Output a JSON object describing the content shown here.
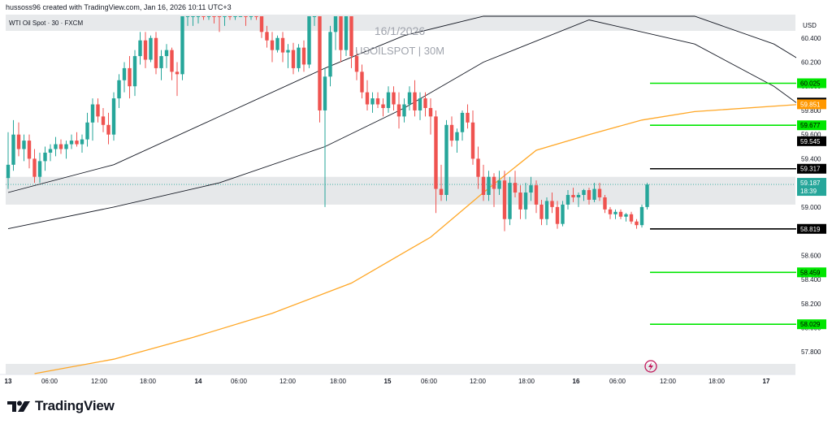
{
  "header": {
    "created_by": "hussoss96 created with TradingView.com, Jan 16, 2026 10:11 UTC+3"
  },
  "symbol_label": "WTI Oil Spot · 30 · FXCM",
  "watermark": {
    "date": "16/1/2026",
    "ticker": "USOILSPOT | 30M"
  },
  "currency": "USD",
  "brand": "TradingView",
  "icons": {
    "flash": "lightning-icon",
    "logo": "tradingview-logo-icon"
  },
  "colors": {
    "bull": "#26a69a",
    "bear": "#ef5350",
    "ema_long": "#ffa726",
    "channel": "#131722",
    "green_level": "#00e600",
    "black_level": "#000000",
    "grid_band": "#e3e5e8",
    "last_price": "#26a69a"
  },
  "chart_data": {
    "type": "candlestick",
    "title": "WTI Oil Spot · 30 · FXCM",
    "ylim": [
      57.62,
      60.58
    ],
    "y_ticks": [
      "60.400",
      "60.200",
      "60.000",
      "59.800",
      "59.600",
      "59.400",
      "59.200",
      "59.000",
      "58.800",
      "58.600",
      "58.400",
      "58.200",
      "58.000",
      "57.800"
    ],
    "x_ticks": [
      "13",
      "06:00",
      "12:00",
      "18:00",
      "14",
      "06:00",
      "12:00",
      "18:00",
      "15",
      "06:00",
      "12:00",
      "18:00",
      "16",
      "06:00",
      "12:00",
      "18:00",
      "17"
    ],
    "candles": [
      {
        "i": 0,
        "o": 59.24,
        "h": 59.62,
        "l": 59.15,
        "c": 59.35
      },
      {
        "i": 1,
        "o": 59.35,
        "h": 59.72,
        "l": 59.3,
        "c": 59.6
      },
      {
        "i": 2,
        "o": 59.6,
        "h": 59.7,
        "l": 59.42,
        "c": 59.48
      },
      {
        "i": 3,
        "o": 59.48,
        "h": 59.6,
        "l": 59.38,
        "c": 59.55
      },
      {
        "i": 4,
        "o": 59.55,
        "h": 59.6,
        "l": 59.32,
        "c": 59.4
      },
      {
        "i": 5,
        "o": 59.4,
        "h": 59.48,
        "l": 59.2,
        "c": 59.25
      },
      {
        "i": 6,
        "o": 59.25,
        "h": 59.45,
        "l": 59.2,
        "c": 59.38
      },
      {
        "i": 7,
        "o": 59.38,
        "h": 59.5,
        "l": 59.3,
        "c": 59.45
      },
      {
        "i": 8,
        "o": 59.45,
        "h": 59.52,
        "l": 59.38,
        "c": 59.48
      },
      {
        "i": 9,
        "o": 59.48,
        "h": 59.58,
        "l": 59.42,
        "c": 59.52
      },
      {
        "i": 10,
        "o": 59.52,
        "h": 59.56,
        "l": 59.44,
        "c": 59.48
      },
      {
        "i": 11,
        "o": 59.48,
        "h": 59.55,
        "l": 59.4,
        "c": 59.52
      },
      {
        "i": 12,
        "o": 59.52,
        "h": 59.6,
        "l": 59.48,
        "c": 59.55
      },
      {
        "i": 13,
        "o": 59.55,
        "h": 59.62,
        "l": 59.5,
        "c": 59.52
      },
      {
        "i": 14,
        "o": 59.52,
        "h": 59.6,
        "l": 59.45,
        "c": 59.56
      },
      {
        "i": 15,
        "o": 59.56,
        "h": 59.78,
        "l": 59.5,
        "c": 59.7
      },
      {
        "i": 16,
        "o": 59.7,
        "h": 59.9,
        "l": 59.55,
        "c": 59.85
      },
      {
        "i": 17,
        "o": 59.85,
        "h": 59.9,
        "l": 59.7,
        "c": 59.75
      },
      {
        "i": 18,
        "o": 59.75,
        "h": 59.82,
        "l": 59.62,
        "c": 59.68
      },
      {
        "i": 19,
        "o": 59.68,
        "h": 59.78,
        "l": 59.52,
        "c": 59.6
      },
      {
        "i": 20,
        "o": 59.6,
        "h": 59.95,
        "l": 59.55,
        "c": 59.9
      },
      {
        "i": 21,
        "o": 59.9,
        "h": 60.1,
        "l": 59.82,
        "c": 60.05
      },
      {
        "i": 22,
        "o": 60.05,
        "h": 60.2,
        "l": 59.95,
        "c": 60.15
      },
      {
        "i": 23,
        "o": 60.15,
        "h": 60.25,
        "l": 59.9,
        "c": 60.0
      },
      {
        "i": 24,
        "o": 60.0,
        "h": 60.3,
        "l": 59.92,
        "c": 60.25
      },
      {
        "i": 25,
        "o": 60.25,
        "h": 60.45,
        "l": 60.18,
        "c": 60.38
      },
      {
        "i": 26,
        "o": 60.38,
        "h": 60.45,
        "l": 60.15,
        "c": 60.22
      },
      {
        "i": 27,
        "o": 60.22,
        "h": 60.42,
        "l": 60.2,
        "c": 60.4
      },
      {
        "i": 28,
        "o": 60.4,
        "h": 60.45,
        "l": 60.1,
        "c": 60.15
      },
      {
        "i": 29,
        "o": 60.15,
        "h": 60.3,
        "l": 60.05,
        "c": 60.25
      },
      {
        "i": 30,
        "o": 60.25,
        "h": 60.35,
        "l": 60.15,
        "c": 60.3
      },
      {
        "i": 31,
        "o": 60.3,
        "h": 60.32,
        "l": 60.05,
        "c": 60.12
      },
      {
        "i": 32,
        "o": 60.12,
        "h": 60.2,
        "l": 59.92,
        "c": 60.1
      },
      {
        "i": 33,
        "o": 60.1,
        "h": 60.7,
        "l": 60.05,
        "c": 60.6
      },
      {
        "i": 34,
        "o": 60.6,
        "h": 60.7,
        "l": 60.5,
        "c": 60.6
      },
      {
        "i": 35,
        "o": 60.6,
        "h": 60.7,
        "l": 60.5,
        "c": 60.6
      },
      {
        "i": 36,
        "o": 60.6,
        "h": 60.7,
        "l": 60.52,
        "c": 60.62
      },
      {
        "i": 37,
        "o": 60.62,
        "h": 60.7,
        "l": 60.55,
        "c": 60.6
      },
      {
        "i": 38,
        "o": 60.6,
        "h": 60.7,
        "l": 60.55,
        "c": 60.62
      },
      {
        "i": 39,
        "o": 60.62,
        "h": 60.7,
        "l": 60.52,
        "c": 60.6
      },
      {
        "i": 40,
        "o": 60.6,
        "h": 60.7,
        "l": 60.45,
        "c": 60.58
      },
      {
        "i": 41,
        "o": 60.58,
        "h": 60.7,
        "l": 60.5,
        "c": 60.62
      },
      {
        "i": 42,
        "o": 60.62,
        "h": 60.7,
        "l": 60.55,
        "c": 60.6
      },
      {
        "i": 43,
        "o": 60.6,
        "h": 60.7,
        "l": 60.55,
        "c": 60.65
      },
      {
        "i": 44,
        "o": 60.65,
        "h": 60.7,
        "l": 60.6,
        "c": 60.68
      },
      {
        "i": 45,
        "o": 60.68,
        "h": 60.7,
        "l": 60.5,
        "c": 60.6
      },
      {
        "i": 46,
        "o": 60.6,
        "h": 60.68,
        "l": 60.55,
        "c": 60.62
      },
      {
        "i": 47,
        "o": 60.62,
        "h": 60.7,
        "l": 60.55,
        "c": 60.6
      },
      {
        "i": 48,
        "o": 60.6,
        "h": 60.68,
        "l": 60.4,
        "c": 60.45
      },
      {
        "i": 49,
        "o": 60.45,
        "h": 60.5,
        "l": 60.32,
        "c": 60.38
      },
      {
        "i": 50,
        "o": 60.38,
        "h": 60.45,
        "l": 60.2,
        "c": 60.3
      },
      {
        "i": 51,
        "o": 60.3,
        "h": 60.42,
        "l": 60.28,
        "c": 60.4
      },
      {
        "i": 52,
        "o": 60.4,
        "h": 60.45,
        "l": 60.2,
        "c": 60.28
      },
      {
        "i": 53,
        "o": 60.28,
        "h": 60.35,
        "l": 60.15,
        "c": 60.3
      },
      {
        "i": 54,
        "o": 60.3,
        "h": 60.36,
        "l": 60.1,
        "c": 60.15
      },
      {
        "i": 55,
        "o": 60.15,
        "h": 60.35,
        "l": 60.12,
        "c": 60.32
      },
      {
        "i": 56,
        "o": 60.32,
        "h": 60.38,
        "l": 60.12,
        "c": 60.18
      },
      {
        "i": 57,
        "o": 60.18,
        "h": 60.6,
        "l": 60.15,
        "c": 60.58
      },
      {
        "i": 58,
        "o": 60.58,
        "h": 60.7,
        "l": 60.5,
        "c": 60.6
      },
      {
        "i": 59,
        "o": 60.6,
        "h": 60.65,
        "l": 59.7,
        "c": 59.8
      },
      {
        "i": 60,
        "o": 59.8,
        "h": 60.15,
        "l": 59.0,
        "c": 60.08
      },
      {
        "i": 61,
        "o": 60.08,
        "h": 60.5,
        "l": 60.0,
        "c": 60.45
      },
      {
        "i": 62,
        "o": 60.45,
        "h": 60.7,
        "l": 60.3,
        "c": 60.6
      },
      {
        "i": 63,
        "o": 60.6,
        "h": 60.7,
        "l": 60.2,
        "c": 60.3
      },
      {
        "i": 64,
        "o": 60.3,
        "h": 60.7,
        "l": 60.25,
        "c": 60.6
      },
      {
        "i": 65,
        "o": 60.6,
        "h": 60.7,
        "l": 60.15,
        "c": 60.25
      },
      {
        "i": 66,
        "o": 60.25,
        "h": 60.3,
        "l": 60.05,
        "c": 60.12
      },
      {
        "i": 67,
        "o": 60.12,
        "h": 60.18,
        "l": 59.9,
        "c": 59.95
      },
      {
        "i": 68,
        "o": 59.95,
        "h": 60.05,
        "l": 59.8,
        "c": 59.85
      },
      {
        "i": 69,
        "o": 59.85,
        "h": 59.95,
        "l": 59.78,
        "c": 59.9
      },
      {
        "i": 70,
        "o": 59.9,
        "h": 59.95,
        "l": 59.82,
        "c": 59.85
      },
      {
        "i": 71,
        "o": 59.85,
        "h": 59.9,
        "l": 59.75,
        "c": 59.82
      },
      {
        "i": 72,
        "o": 59.82,
        "h": 60.0,
        "l": 59.78,
        "c": 59.95
      },
      {
        "i": 73,
        "o": 59.95,
        "h": 60.0,
        "l": 59.8,
        "c": 59.85
      },
      {
        "i": 74,
        "o": 59.85,
        "h": 59.95,
        "l": 59.65,
        "c": 59.75
      },
      {
        "i": 75,
        "o": 59.75,
        "h": 59.9,
        "l": 59.7,
        "c": 59.85
      },
      {
        "i": 76,
        "o": 59.85,
        "h": 60.0,
        "l": 59.8,
        "c": 59.95
      },
      {
        "i": 77,
        "o": 59.95,
        "h": 60.05,
        "l": 59.75,
        "c": 59.8
      },
      {
        "i": 78,
        "o": 59.8,
        "h": 59.95,
        "l": 59.72,
        "c": 59.9
      },
      {
        "i": 79,
        "o": 59.9,
        "h": 59.95,
        "l": 59.75,
        "c": 59.82
      },
      {
        "i": 80,
        "o": 59.82,
        "h": 59.9,
        "l": 59.6,
        "c": 59.75
      },
      {
        "i": 81,
        "o": 59.75,
        "h": 59.8,
        "l": 58.95,
        "c": 59.15
      },
      {
        "i": 82,
        "o": 59.15,
        "h": 59.35,
        "l": 59.05,
        "c": 59.1
      },
      {
        "i": 83,
        "o": 59.1,
        "h": 59.72,
        "l": 59.05,
        "c": 59.68
      },
      {
        "i": 84,
        "o": 59.68,
        "h": 59.75,
        "l": 59.5,
        "c": 59.55
      },
      {
        "i": 85,
        "o": 59.55,
        "h": 59.65,
        "l": 59.45,
        "c": 59.62
      },
      {
        "i": 86,
        "o": 59.62,
        "h": 59.8,
        "l": 59.55,
        "c": 59.78
      },
      {
        "i": 87,
        "o": 59.78,
        "h": 59.85,
        "l": 59.65,
        "c": 59.7
      },
      {
        "i": 88,
        "o": 59.7,
        "h": 59.8,
        "l": 59.35,
        "c": 59.4
      },
      {
        "i": 89,
        "o": 59.4,
        "h": 59.5,
        "l": 59.15,
        "c": 59.25
      },
      {
        "i": 90,
        "o": 59.25,
        "h": 59.35,
        "l": 59.05,
        "c": 59.1
      },
      {
        "i": 91,
        "o": 59.1,
        "h": 59.3,
        "l": 59.05,
        "c": 59.25
      },
      {
        "i": 92,
        "o": 59.25,
        "h": 59.28,
        "l": 59.0,
        "c": 59.15
      },
      {
        "i": 93,
        "o": 59.15,
        "h": 59.3,
        "l": 59.1,
        "c": 59.22
      },
      {
        "i": 94,
        "o": 59.22,
        "h": 59.3,
        "l": 58.8,
        "c": 58.9
      },
      {
        "i": 95,
        "o": 58.9,
        "h": 59.25,
        "l": 58.85,
        "c": 59.2
      },
      {
        "i": 96,
        "o": 59.2,
        "h": 59.3,
        "l": 59.08,
        "c": 59.12
      },
      {
        "i": 97,
        "o": 59.12,
        "h": 59.18,
        "l": 58.9,
        "c": 58.98
      },
      {
        "i": 98,
        "o": 58.98,
        "h": 59.2,
        "l": 58.9,
        "c": 59.12
      },
      {
        "i": 99,
        "o": 59.12,
        "h": 59.25,
        "l": 59.05,
        "c": 59.18
      },
      {
        "i": 100,
        "o": 59.18,
        "h": 59.22,
        "l": 58.95,
        "c": 59.02
      },
      {
        "i": 101,
        "o": 59.02,
        "h": 59.06,
        "l": 58.85,
        "c": 58.9
      },
      {
        "i": 102,
        "o": 58.9,
        "h": 59.08,
        "l": 58.85,
        "c": 59.05
      },
      {
        "i": 103,
        "o": 59.05,
        "h": 59.12,
        "l": 58.95,
        "c": 59.0
      },
      {
        "i": 104,
        "o": 59.0,
        "h": 59.05,
        "l": 58.82,
        "c": 58.86
      },
      {
        "i": 105,
        "o": 58.86,
        "h": 59.05,
        "l": 58.84,
        "c": 59.02
      },
      {
        "i": 106,
        "o": 59.02,
        "h": 59.14,
        "l": 58.98,
        "c": 59.1
      },
      {
        "i": 107,
        "o": 59.1,
        "h": 59.16,
        "l": 59.04,
        "c": 59.08
      },
      {
        "i": 108,
        "o": 59.08,
        "h": 59.12,
        "l": 59.0,
        "c": 59.1
      },
      {
        "i": 109,
        "o": 59.1,
        "h": 59.15,
        "l": 59.05,
        "c": 59.14
      },
      {
        "i": 110,
        "o": 59.14,
        "h": 59.16,
        "l": 59.02,
        "c": 59.06
      },
      {
        "i": 111,
        "o": 59.06,
        "h": 59.2,
        "l": 59.04,
        "c": 59.15
      },
      {
        "i": 112,
        "o": 59.15,
        "h": 59.2,
        "l": 59.05,
        "c": 59.08
      },
      {
        "i": 113,
        "o": 59.08,
        "h": 59.1,
        "l": 58.95,
        "c": 58.98
      },
      {
        "i": 114,
        "o": 58.98,
        "h": 59.0,
        "l": 58.9,
        "c": 58.94
      },
      {
        "i": 115,
        "o": 58.94,
        "h": 58.98,
        "l": 58.9,
        "c": 58.96
      },
      {
        "i": 116,
        "o": 58.96,
        "h": 58.98,
        "l": 58.9,
        "c": 58.92
      },
      {
        "i": 117,
        "o": 58.92,
        "h": 58.95,
        "l": 58.88,
        "c": 58.94
      },
      {
        "i": 118,
        "o": 58.94,
        "h": 58.96,
        "l": 58.86,
        "c": 58.88
      },
      {
        "i": 119,
        "o": 58.88,
        "h": 58.9,
        "l": 58.82,
        "c": 58.85
      },
      {
        "i": 120,
        "o": 58.85,
        "h": 59.02,
        "l": 58.83,
        "c": 59.0
      },
      {
        "i": 121,
        "o": 59.0,
        "h": 59.2,
        "l": 58.98,
        "c": 59.187
      }
    ],
    "ema_long": [
      {
        "i": 5,
        "x": 57.62
      },
      {
        "i": 20,
        "x": 57.74
      },
      {
        "i": 35,
        "x": 57.92
      },
      {
        "i": 50,
        "x": 58.12
      },
      {
        "i": 65,
        "x": 58.37
      },
      {
        "i": 80,
        "x": 58.75
      },
      {
        "i": 90,
        "x": 59.12
      },
      {
        "i": 100,
        "x": 59.47
      },
      {
        "i": 110,
        "x": 59.6
      },
      {
        "i": 120,
        "x": 59.72
      },
      {
        "i": 130,
        "x": 59.79
      },
      {
        "i": 150,
        "x": 59.85
      }
    ],
    "channel_upper": [
      {
        "i": 0,
        "x": 59.12
      },
      {
        "i": 20,
        "x": 59.35
      },
      {
        "i": 40,
        "x": 59.75
      },
      {
        "i": 60,
        "x": 60.15
      },
      {
        "i": 75,
        "x": 60.42
      },
      {
        "i": 90,
        "x": 60.7
      },
      {
        "i": 110,
        "x": 60.7
      },
      {
        "i": 130,
        "x": 60.6
      },
      {
        "i": 145,
        "x": 60.35
      },
      {
        "i": 160,
        "x": 59.95
      }
    ],
    "channel_lower": [
      {
        "i": 0,
        "x": 58.82
      },
      {
        "i": 20,
        "x": 59.0
      },
      {
        "i": 40,
        "x": 59.2
      },
      {
        "i": 60,
        "x": 59.5
      },
      {
        "i": 75,
        "x": 59.82
      },
      {
        "i": 90,
        "x": 60.2
      },
      {
        "i": 110,
        "x": 60.55
      },
      {
        "i": 130,
        "x": 60.35
      },
      {
        "i": 145,
        "x": 60.0
      },
      {
        "i": 160,
        "x": 59.52
      }
    ],
    "levels_green": [
      "60.025",
      "59.677",
      "58.459",
      "58.029"
    ],
    "levels_black": [
      "59.317",
      "58.819"
    ],
    "price_labels": [
      {
        "value": "59.865",
        "style": "black"
      },
      {
        "value": "59.851",
        "style": "orange"
      },
      {
        "value": "59.545",
        "style": "black"
      }
    ],
    "last_price": {
      "value": "59.187",
      "countdown": "18:39"
    },
    "shaded_zones": [
      {
        "from": 59.02,
        "to": 59.25
      }
    ]
  }
}
